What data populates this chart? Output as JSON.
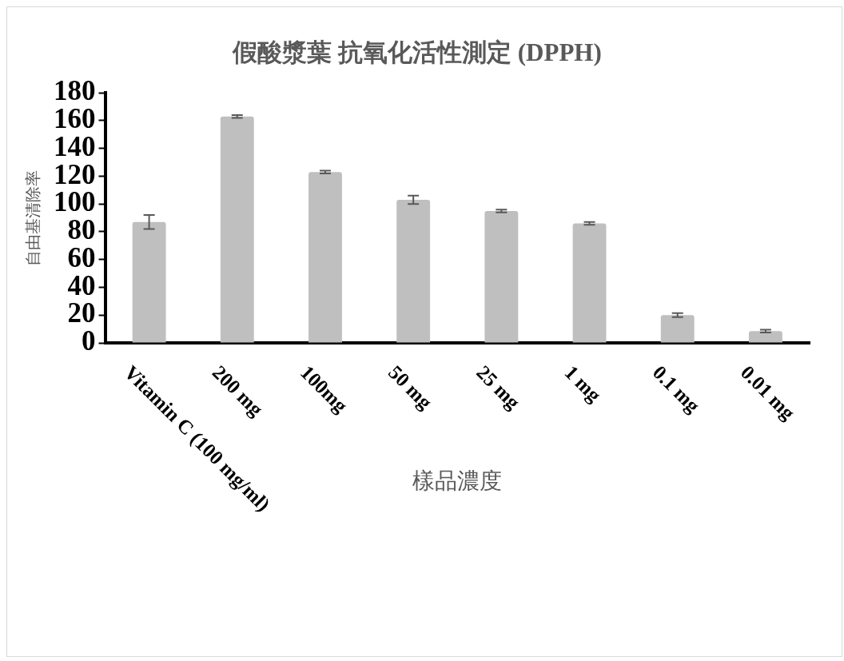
{
  "chart_data": {
    "type": "bar",
    "title": "假酸漿葉 抗氧化活性測定 (DPPH)",
    "xlabel": "樣品濃度",
    "ylabel": "自由基清除率",
    "categories": [
      "Vitamin C (100 mg/ml)",
      "200 mg",
      "100mg",
      "50 mg",
      "25 mg",
      "1 mg",
      "0.1 mg",
      "0.01 mg"
    ],
    "values": [
      87,
      163,
      123,
      103,
      95,
      86,
      20,
      8.5
    ],
    "errors": [
      5,
      1,
      1,
      3,
      1,
      1,
      1.5,
      1
    ],
    "color": "#bfbfbf",
    "ylim": [
      0,
      180
    ],
    "yticks": [
      0,
      20,
      40,
      60,
      80,
      100,
      120,
      140,
      160,
      180
    ],
    "grid": false,
    "legend": false
  }
}
